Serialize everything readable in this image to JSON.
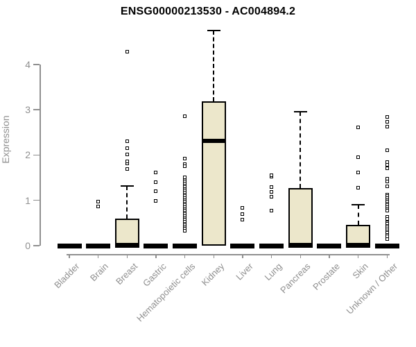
{
  "chart_data": {
    "type": "boxplot",
    "title": "ENSG00000213530 - AC004894.2",
    "xlabel": "",
    "ylabel": "Expression",
    "ylim": [
      0,
      4.8
    ],
    "yticks": [
      0,
      1,
      2,
      3,
      4
    ],
    "grid": false,
    "box_fill_color": "#ece7cb",
    "box_line_color": "#000000",
    "axis_color": "#8f8f8f",
    "categories": [
      "Bladder",
      "Brain",
      "Breast",
      "Gastric",
      "Hematopoietic cells",
      "Kidney",
      "Liver",
      "Lung",
      "Pancreas",
      "Prostate",
      "Skin",
      "Unknown / Other"
    ],
    "series": [
      {
        "name": "Bladder",
        "q1": 0,
        "median": 0,
        "q3": 0,
        "whisker_low": 0,
        "whisker_high": 0,
        "outliers": []
      },
      {
        "name": "Brain",
        "q1": 0,
        "median": 0,
        "q3": 0,
        "whisker_low": 0,
        "whisker_high": 0,
        "outliers": [
          0.87,
          0.97
        ]
      },
      {
        "name": "Breast",
        "q1": 0,
        "median": 0,
        "q3": 0.59,
        "whisker_low": 0,
        "whisker_high": 1.32,
        "outliers": [
          1.69,
          1.82,
          1.86,
          2.01,
          2.15,
          2.3,
          4.28
        ]
      },
      {
        "name": "Gastric",
        "q1": 0,
        "median": 0,
        "q3": 0,
        "whisker_low": 0,
        "whisker_high": 0,
        "outliers": [
          0.99,
          1.2,
          1.4,
          1.61
        ]
      },
      {
        "name": "Hematopoietic cells",
        "q1": 0,
        "median": 0,
        "q3": 0,
        "whisker_low": 0,
        "whisker_high": 0,
        "outliers": [
          2.86,
          1.92,
          1.8,
          1.76,
          1.51,
          1.45,
          1.41,
          1.37,
          1.33,
          1.29,
          1.25,
          1.21,
          1.17,
          1.13,
          1.09,
          1.05,
          1.01,
          0.97,
          0.93,
          0.89,
          0.85,
          0.81,
          0.77,
          0.73,
          0.69,
          0.65,
          0.61,
          0.57,
          0.53,
          0.49,
          0.45,
          0.41,
          0.37,
          0.33
        ]
      },
      {
        "name": "Kidney",
        "q1": 0,
        "median": 2.32,
        "q3": 3.19,
        "whisker_low": 0,
        "whisker_high": 4.75,
        "outliers": []
      },
      {
        "name": "Liver",
        "q1": 0,
        "median": 0,
        "q3": 0,
        "whisker_low": 0,
        "whisker_high": 0,
        "outliers": [
          0.58,
          0.7,
          0.84
        ]
      },
      {
        "name": "Lung",
        "q1": 0,
        "median": 0,
        "q3": 0,
        "whisker_low": 0,
        "whisker_high": 0,
        "outliers": [
          0.78,
          1.08,
          1.18,
          1.3,
          1.52,
          1.56
        ]
      },
      {
        "name": "Pancreas",
        "q1": 0,
        "median": 0,
        "q3": 1.27,
        "whisker_low": 0,
        "whisker_high": 2.96,
        "outliers": []
      },
      {
        "name": "Prostate",
        "q1": 0,
        "median": 0,
        "q3": 0,
        "whisker_low": 0,
        "whisker_high": 0,
        "outliers": []
      },
      {
        "name": "Skin",
        "q1": 0,
        "median": 0,
        "q3": 0.46,
        "whisker_low": 0,
        "whisker_high": 0.91,
        "outliers": [
          1.28,
          1.62,
          1.95,
          2.61
        ]
      },
      {
        "name": "Unknown / Other",
        "q1": 0,
        "median": 0,
        "q3": 0,
        "whisker_low": 0,
        "whisker_high": 0,
        "outliers": [
          2.84,
          2.74,
          2.62,
          2.1,
          1.85,
          1.78,
          1.7,
          1.48,
          1.41,
          1.31,
          1.13,
          1.09,
          1.05,
          1.01,
          0.97,
          0.93,
          0.89,
          0.85,
          0.81,
          0.77,
          0.64,
          0.59,
          0.52,
          0.48,
          0.44,
          0.4,
          0.36,
          0.32,
          0.28,
          0.24,
          0.2,
          0.15
        ]
      }
    ]
  }
}
